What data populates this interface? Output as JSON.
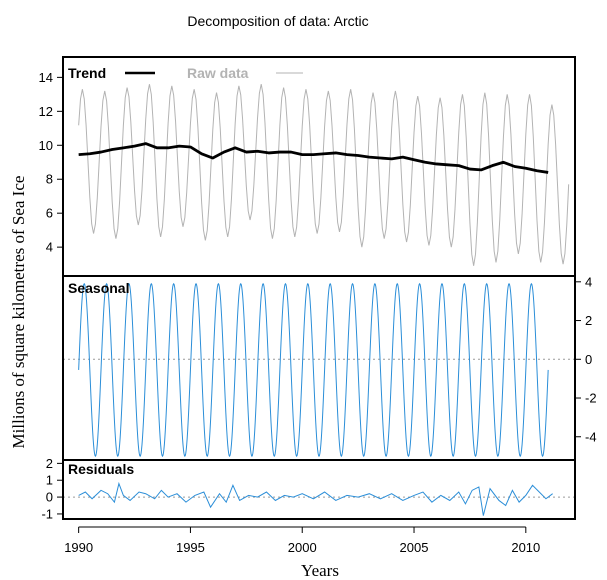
{
  "chart_data": {
    "type": "line",
    "title": "Decomposition of data: Arctic",
    "xlabel": "Years",
    "ylabel": "Millions of square kilometres of Sea Ice",
    "xlim": [
      1989.3,
      2012.2
    ],
    "x_ticks": [
      "1990",
      "1995",
      "2000",
      "2005",
      "2010"
    ],
    "legend": [
      {
        "name": "Trend",
        "color": "#000000"
      },
      {
        "name": "Raw data",
        "color": "#b3b3b3"
      }
    ],
    "panels": [
      {
        "id": "trend",
        "label": "Trend",
        "ylim": [
          2.3,
          15.2
        ],
        "y_ticks": [
          "4",
          "6",
          "8",
          "10",
          "12",
          "14"
        ],
        "y_axis_side": "left",
        "series": [
          {
            "name": "Raw data",
            "color": "#b3b3b3",
            "sampling": "monthly",
            "x_start": 1990.0,
            "annual_max": [
              13.3,
              13.2,
              13.4,
              13.6,
              13.5,
              13.3,
              13.1,
              13.5,
              13.6,
              13.4,
              13.3,
              13.2,
              13.3,
              13.1,
              13.2,
              12.9,
              12.8,
              13.0,
              13.1,
              13.0,
              13.0,
              12.4
            ],
            "annual_min": [
              4.8,
              4.5,
              5.3,
              4.6,
              5.2,
              4.4,
              4.6,
              5.6,
              4.5,
              4.6,
              4.8,
              4.9,
              4.0,
              4.5,
              4.3,
              4.1,
              4.0,
              2.9,
              3.1,
              3.6,
              3.1,
              3.0
            ]
          },
          {
            "name": "Trend",
            "color": "#000000",
            "x": [
              1990.0,
              1990.5,
              1991.0,
              1991.5,
              1992.0,
              1992.5,
              1993.0,
              1993.5,
              1994.0,
              1994.5,
              1995.0,
              1995.5,
              1996.0,
              1996.5,
              1997.0,
              1997.5,
              1998.0,
              1998.5,
              1999.0,
              1999.5,
              2000.0,
              2000.5,
              2001.0,
              2001.5,
              2002.0,
              2002.5,
              2003.0,
              2003.5,
              2004.0,
              2004.5,
              2005.0,
              2005.5,
              2006.0,
              2006.5,
              2007.0,
              2007.5,
              2008.0,
              2008.5,
              2009.0,
              2009.5,
              2010.0,
              2010.5,
              2011.0
            ],
            "y": [
              9.45,
              9.5,
              9.6,
              9.75,
              9.85,
              9.95,
              10.1,
              9.85,
              9.85,
              9.95,
              9.9,
              9.5,
              9.25,
              9.6,
              9.85,
              9.6,
              9.65,
              9.55,
              9.6,
              9.6,
              9.45,
              9.45,
              9.5,
              9.55,
              9.45,
              9.4,
              9.3,
              9.25,
              9.2,
              9.3,
              9.15,
              9.0,
              8.9,
              8.85,
              8.8,
              8.6,
              8.55,
              8.8,
              9.0,
              8.75,
              8.65,
              8.5,
              8.4
            ]
          }
        ]
      },
      {
        "id": "seasonal",
        "label": "Seasonal",
        "ylim": [
          -5.2,
          4.3
        ],
        "y_ticks": [
          "4",
          "2",
          "0",
          "-2",
          "-4"
        ],
        "y_axis_side": "right",
        "zero_line": true,
        "series": [
          {
            "name": "Seasonal",
            "color": "#2b8ed8",
            "sampling": "monthly",
            "x_start": 1990.0,
            "period_years": 1,
            "max": 3.9,
            "min": -5.0,
            "peak_month": 3,
            "trough_month": 9
          }
        ]
      },
      {
        "id": "residuals",
        "label": "Residuals",
        "ylim": [
          -1.3,
          2.2
        ],
        "y_ticks": [
          "2",
          "1",
          "0",
          "-1"
        ],
        "y_axis_side": "left",
        "zero_line": true,
        "series": [
          {
            "name": "Residuals",
            "color": "#2b8ed8",
            "x": [
              1990.0,
              1990.3,
              1990.6,
              1991.0,
              1991.3,
              1991.6,
              1991.8,
              1992.0,
              1992.3,
              1992.7,
              1993.0,
              1993.4,
              1993.7,
              1994.0,
              1994.4,
              1994.8,
              1995.2,
              1995.6,
              1995.9,
              1996.3,
              1996.6,
              1996.9,
              1997.2,
              1997.6,
              1998.0,
              1998.4,
              1998.8,
              1999.2,
              1999.6,
              2000.0,
              2000.5,
              2001.0,
              2001.5,
              2002.0,
              2002.5,
              2003.0,
              2003.5,
              2004.0,
              2004.5,
              2005.0,
              2005.4,
              2005.8,
              2006.2,
              2006.6,
              2007.0,
              2007.3,
              2007.6,
              2007.9,
              2008.1,
              2008.4,
              2008.8,
              2009.1,
              2009.4,
              2009.7,
              2010.0,
              2010.3,
              2010.6,
              2010.9,
              2011.2
            ],
            "y": [
              0.1,
              0.3,
              -0.1,
              0.4,
              0.2,
              -0.3,
              0.8,
              0.1,
              -0.2,
              0.3,
              0.2,
              -0.1,
              0.4,
              0.0,
              0.2,
              -0.3,
              0.1,
              0.3,
              -0.6,
              0.2,
              -0.3,
              0.7,
              -0.2,
              0.1,
              0.0,
              0.3,
              -0.2,
              0.1,
              0.0,
              0.2,
              -0.1,
              0.3,
              -0.2,
              0.1,
              0.0,
              0.2,
              -0.1,
              0.2,
              -0.2,
              0.1,
              0.3,
              -0.3,
              0.1,
              -0.2,
              0.3,
              -0.4,
              0.4,
              0.6,
              -1.1,
              0.5,
              -0.2,
              -0.5,
              0.4,
              -0.3,
              0.1,
              0.7,
              0.3,
              -0.1,
              0.2
            ]
          }
        ]
      }
    ]
  }
}
